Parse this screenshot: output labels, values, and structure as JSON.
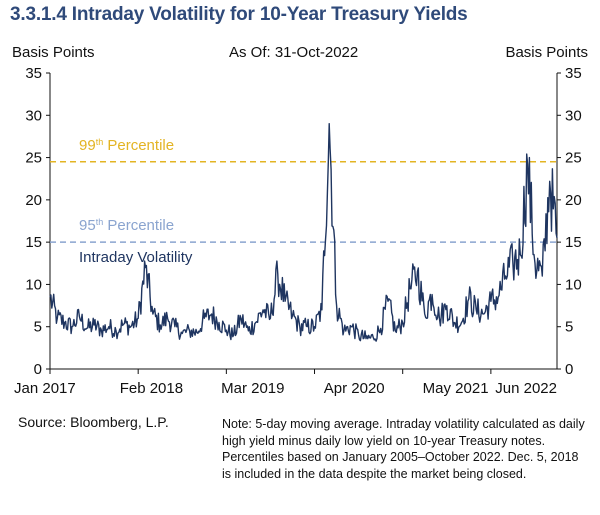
{
  "title": "3.3.1.4 Intraday Volatility for 10-Year Treasury Yields",
  "header": {
    "left_axis_label": "Basis Points",
    "as_of": "As Of: 31-Oct-2022",
    "right_axis_label": "Basis Points"
  },
  "footer": {
    "source": "Source: Bloomberg, L.P.",
    "note": "Note: 5-day moving average. Intraday volatility calculated as daily high yield minus daily low yield on 10-year Treasury notes.  Percentiles based on January 2005–October 2022. Dec. 5, 2018 is included in the data despite the market being closed."
  },
  "colors": {
    "series": "#1f3560",
    "p99": "#e3b423",
    "p95": "#8aa4cf",
    "axis": "#111111"
  },
  "chart_data": {
    "type": "line",
    "ylabel": "Basis Points",
    "ylim": [
      0,
      35
    ],
    "yticks": [
      0,
      5,
      10,
      15,
      20,
      25,
      30,
      35
    ],
    "xlim": [
      "2017-01",
      "2022-10"
    ],
    "xticks": [
      "Jan 2017",
      "Feb 2018",
      "Mar 2019",
      "Apr 2020",
      "May 2021",
      "Jun 2022"
    ],
    "reference_lines": [
      {
        "name": "99th Percentile",
        "base": "99",
        "sup": "th",
        "rest": " Percentile",
        "value": 24.5,
        "style": "dashed"
      },
      {
        "name": "95th Percentile",
        "base": "95",
        "sup": "th",
        "rest": " Percentile",
        "value": 15.0,
        "style": "dashed"
      }
    ],
    "series": [
      {
        "name": "Intraday Volatility",
        "x": [
          "2017-01",
          "2017-02",
          "2017-03",
          "2017-04",
          "2017-05",
          "2017-06",
          "2017-07",
          "2017-08",
          "2017-09",
          "2017-10",
          "2017-11",
          "2017-12",
          "2018-01",
          "2018-02",
          "2018-03",
          "2018-04",
          "2018-05",
          "2018-06",
          "2018-07",
          "2018-08",
          "2018-09",
          "2018-10",
          "2018-11",
          "2018-12",
          "2019-01",
          "2019-02",
          "2019-03",
          "2019-04",
          "2019-05",
          "2019-06",
          "2019-07",
          "2019-08",
          "2019-09",
          "2019-10",
          "2019-11",
          "2019-12",
          "2020-01",
          "2020-02",
          "2020-03",
          "2020-04",
          "2020-05",
          "2020-06",
          "2020-07",
          "2020-08",
          "2020-09",
          "2020-10",
          "2020-11",
          "2020-12",
          "2021-01",
          "2021-02",
          "2021-03",
          "2021-04",
          "2021-05",
          "2021-06",
          "2021-07",
          "2021-08",
          "2021-09",
          "2021-10",
          "2021-11",
          "2021-12",
          "2022-01",
          "2022-02",
          "2022-03",
          "2022-04",
          "2022-05",
          "2022-06",
          "2022-07",
          "2022-08",
          "2022-09",
          "2022-10"
        ],
        "values": [
          8.5,
          6.0,
          5.5,
          5.0,
          6.2,
          4.8,
          5.2,
          4.6,
          5.0,
          4.5,
          5.3,
          5.0,
          6.0,
          12.0,
          6.5,
          5.2,
          6.0,
          5.0,
          4.2,
          4.5,
          4.3,
          6.0,
          6.5,
          5.5,
          4.6,
          4.0,
          6.0,
          4.5,
          5.5,
          7.0,
          6.0,
          11.2,
          8.0,
          6.3,
          5.0,
          5.0,
          5.0,
          7.0,
          29.0,
          7.5,
          4.5,
          5.0,
          4.0,
          3.6,
          3.7,
          4.8,
          8.0,
          4.5,
          5.5,
          9.5,
          11.5,
          6.5,
          8.8,
          6.0,
          7.5,
          5.5,
          5.5,
          8.3,
          7.0,
          6.5,
          8.0,
          8.5,
          11.0,
          12.5,
          13.5,
          24.2,
          12.5,
          11.0,
          22.2,
          15.5
        ]
      }
    ]
  }
}
